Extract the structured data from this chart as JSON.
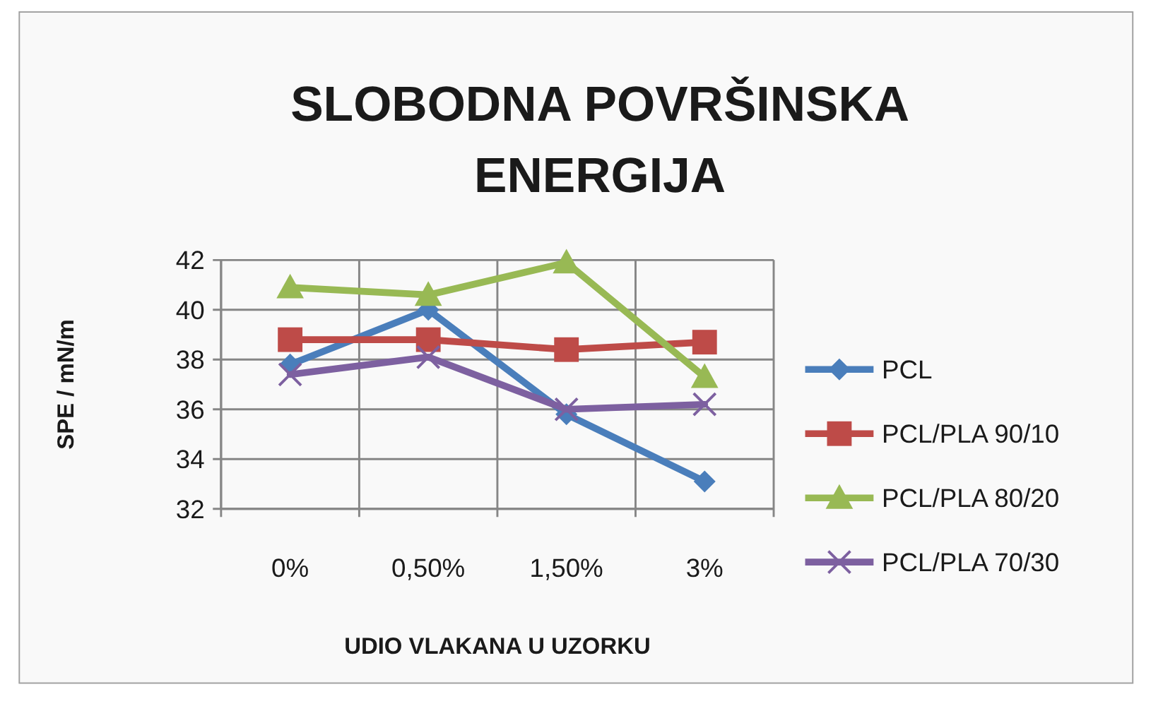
{
  "chart_data": {
    "type": "line",
    "title": "SLOBODNA POVRŠINSKA ENERGIJA",
    "xlabel": "UDIO VLAKANA U UZORKU",
    "ylabel": "SPE / mN/m",
    "categories": [
      "0%",
      "0,50%",
      "1,50%",
      "3%"
    ],
    "series": [
      {
        "name": "PCL",
        "color": "#4a7ebb",
        "marker": "diamond",
        "values": [
          37.8,
          40.0,
          35.8,
          33.1
        ]
      },
      {
        "name": "PCL/PLA 90/10",
        "color": "#be4b48",
        "marker": "square",
        "values": [
          38.8,
          38.8,
          38.4,
          38.7
        ]
      },
      {
        "name": "PCL/PLA 80/20",
        "color": "#98b954",
        "marker": "triangle",
        "values": [
          40.9,
          40.6,
          41.9,
          37.3
        ]
      },
      {
        "name": "PCL/PLA 70/30",
        "color": "#7d60a0",
        "marker": "cross",
        "values": [
          37.4,
          38.1,
          36.0,
          36.2
        ]
      }
    ],
    "ylim": [
      32,
      42
    ],
    "yticks": [
      32,
      34,
      36,
      38,
      40,
      42
    ],
    "grid": true,
    "legend": "right"
  }
}
